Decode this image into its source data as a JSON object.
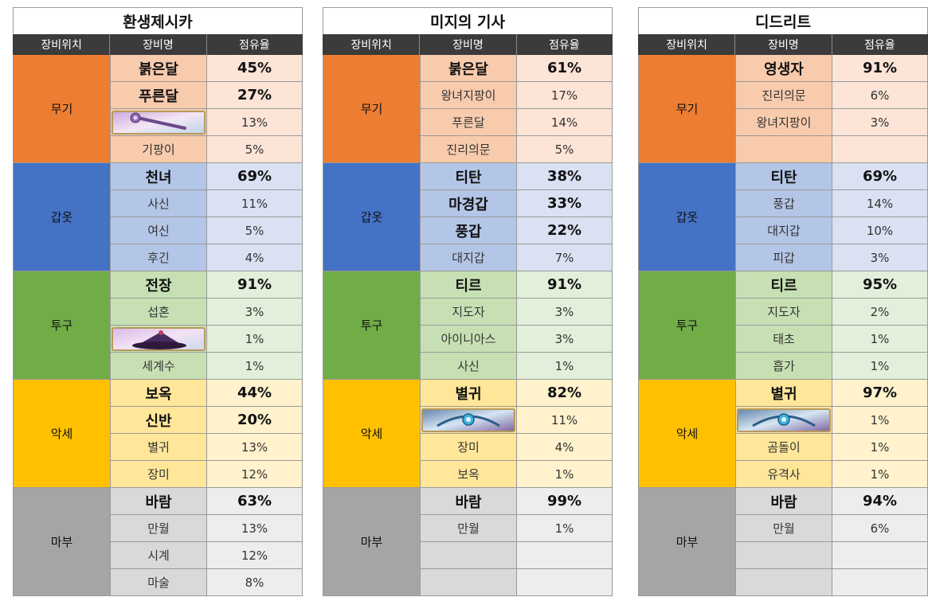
{
  "header": {
    "slot": "장비위치",
    "name": "장비명",
    "rate": "점유율"
  },
  "tables": [
    {
      "title": "환생제시카",
      "groups": [
        {
          "slot": "무기",
          "rows": [
            {
              "name": "붉은달",
              "rate": "45%",
              "bold": true
            },
            {
              "name": "푸른달",
              "rate": "27%",
              "bold": true
            },
            {
              "name": "",
              "rate": "13%",
              "icon": "staff-icon"
            },
            {
              "name": "기팡이",
              "rate": "5%"
            }
          ]
        },
        {
          "slot": "갑옷",
          "rows": [
            {
              "name": "천녀",
              "rate": "69%",
              "bold": true
            },
            {
              "name": "사신",
              "rate": "11%"
            },
            {
              "name": "여신",
              "rate": "5%"
            },
            {
              "name": "후긴",
              "rate": "4%"
            }
          ]
        },
        {
          "slot": "투구",
          "rows": [
            {
              "name": "전장",
              "rate": "91%",
              "bold": true
            },
            {
              "name": "섭혼",
              "rate": "3%"
            },
            {
              "name": "",
              "rate": "1%",
              "icon": "hat-icon"
            },
            {
              "name": "세계수",
              "rate": "1%"
            }
          ]
        },
        {
          "slot": "악세",
          "rows": [
            {
              "name": "보옥",
              "rate": "44%",
              "bold": true
            },
            {
              "name": "신반",
              "rate": "20%",
              "bold": true
            },
            {
              "name": "별귀",
              "rate": "13%"
            },
            {
              "name": "장미",
              "rate": "12%"
            }
          ]
        },
        {
          "slot": "마부",
          "rows": [
            {
              "name": "바람",
              "rate": "63%",
              "bold": true
            },
            {
              "name": "만월",
              "rate": "13%"
            },
            {
              "name": "시계",
              "rate": "12%"
            },
            {
              "name": "마술",
              "rate": "8%"
            }
          ]
        }
      ]
    },
    {
      "title": "미지의 기사",
      "groups": [
        {
          "slot": "무기",
          "rows": [
            {
              "name": "붉은달",
              "rate": "61%",
              "bold": true
            },
            {
              "name": "왕녀지팡이",
              "rate": "17%"
            },
            {
              "name": "푸른달",
              "rate": "14%"
            },
            {
              "name": "진리의문",
              "rate": "5%"
            }
          ]
        },
        {
          "slot": "갑옷",
          "rows": [
            {
              "name": "티탄",
              "rate": "38%",
              "bold": true
            },
            {
              "name": "마경갑",
              "rate": "33%",
              "bold": true
            },
            {
              "name": "풍갑",
              "rate": "22%",
              "bold": true
            },
            {
              "name": "대지갑",
              "rate": "7%"
            }
          ]
        },
        {
          "slot": "투구",
          "rows": [
            {
              "name": "티르",
              "rate": "91%",
              "bold": true
            },
            {
              "name": "지도자",
              "rate": "3%"
            },
            {
              "name": "아이니아스",
              "rate": "3%"
            },
            {
              "name": "사신",
              "rate": "1%"
            }
          ]
        },
        {
          "slot": "악세",
          "rows": [
            {
              "name": "별귀",
              "rate": "82%",
              "bold": true
            },
            {
              "name": "",
              "rate": "11%",
              "icon": "gem-accessory-icon"
            },
            {
              "name": "장미",
              "rate": "4%"
            },
            {
              "name": "보옥",
              "rate": "1%"
            }
          ]
        },
        {
          "slot": "마부",
          "rows": [
            {
              "name": "바람",
              "rate": "99%",
              "bold": true
            },
            {
              "name": "만월",
              "rate": "1%"
            },
            {
              "name": "",
              "rate": ""
            },
            {
              "name": "",
              "rate": ""
            }
          ]
        }
      ]
    },
    {
      "title": "디드리트",
      "groups": [
        {
          "slot": "무기",
          "rows": [
            {
              "name": "영생자",
              "rate": "91%",
              "bold": true
            },
            {
              "name": "진리의문",
              "rate": "6%"
            },
            {
              "name": "왕녀지팡이",
              "rate": "3%"
            },
            {
              "name": "",
              "rate": ""
            }
          ]
        },
        {
          "slot": "갑옷",
          "rows": [
            {
              "name": "티탄",
              "rate": "69%",
              "bold": true
            },
            {
              "name": "풍갑",
              "rate": "14%"
            },
            {
              "name": "대지갑",
              "rate": "10%"
            },
            {
              "name": "피갑",
              "rate": "3%"
            }
          ]
        },
        {
          "slot": "투구",
          "rows": [
            {
              "name": "티르",
              "rate": "95%",
              "bold": true
            },
            {
              "name": "지도자",
              "rate": "2%"
            },
            {
              "name": "태초",
              "rate": "1%"
            },
            {
              "name": "흡가",
              "rate": "1%"
            }
          ]
        },
        {
          "slot": "악세",
          "rows": [
            {
              "name": "별귀",
              "rate": "97%",
              "bold": true
            },
            {
              "name": "",
              "rate": "1%",
              "icon": "gem-accessory-icon"
            },
            {
              "name": "곰돌이",
              "rate": "1%"
            },
            {
              "name": "유격사",
              "rate": "1%"
            }
          ]
        },
        {
          "slot": "마부",
          "rows": [
            {
              "name": "바람",
              "rate": "94%",
              "bold": true
            },
            {
              "name": "만월",
              "rate": "6%"
            },
            {
              "name": "",
              "rate": ""
            },
            {
              "name": "",
              "rate": ""
            }
          ]
        }
      ]
    }
  ]
}
